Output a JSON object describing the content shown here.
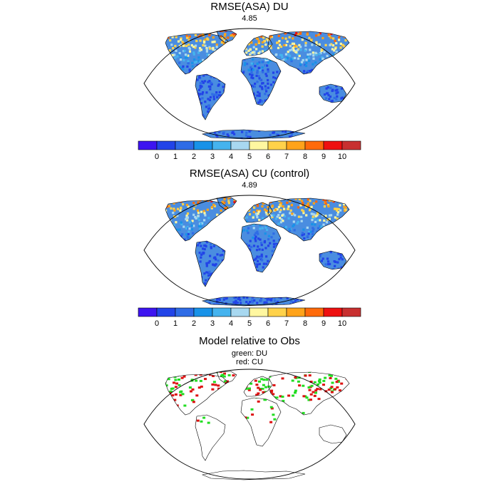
{
  "panels": [
    {
      "title": "RMSE(ASA) DU",
      "value": "4.85"
    },
    {
      "title": "RMSE(ASA) CU (control)",
      "value": "4.89"
    },
    {
      "title": "Model relative to Obs",
      "subtitle_1": "green: DU",
      "subtitle_2": "red: CU"
    }
  ],
  "colorbar": {
    "labels": [
      "0",
      "1",
      "2",
      "3",
      "4",
      "5",
      "6",
      "7",
      "8",
      "9",
      "10"
    ],
    "colors": [
      "#3d14f0",
      "#2244e8",
      "#2f6ce6",
      "#1892e8",
      "#45b3ee",
      "#a8d8f0",
      "#fff7a0",
      "#ffd24a",
      "#ffa31a",
      "#ff6a0a",
      "#ee1010",
      "#c83030"
    ]
  },
  "palette": {
    "ocean": "#ffffff",
    "land_low": "#4a8de0",
    "land_hi": "#e63a12",
    "du_color": "#22dd22",
    "cu_color": "#dd1111"
  }
}
